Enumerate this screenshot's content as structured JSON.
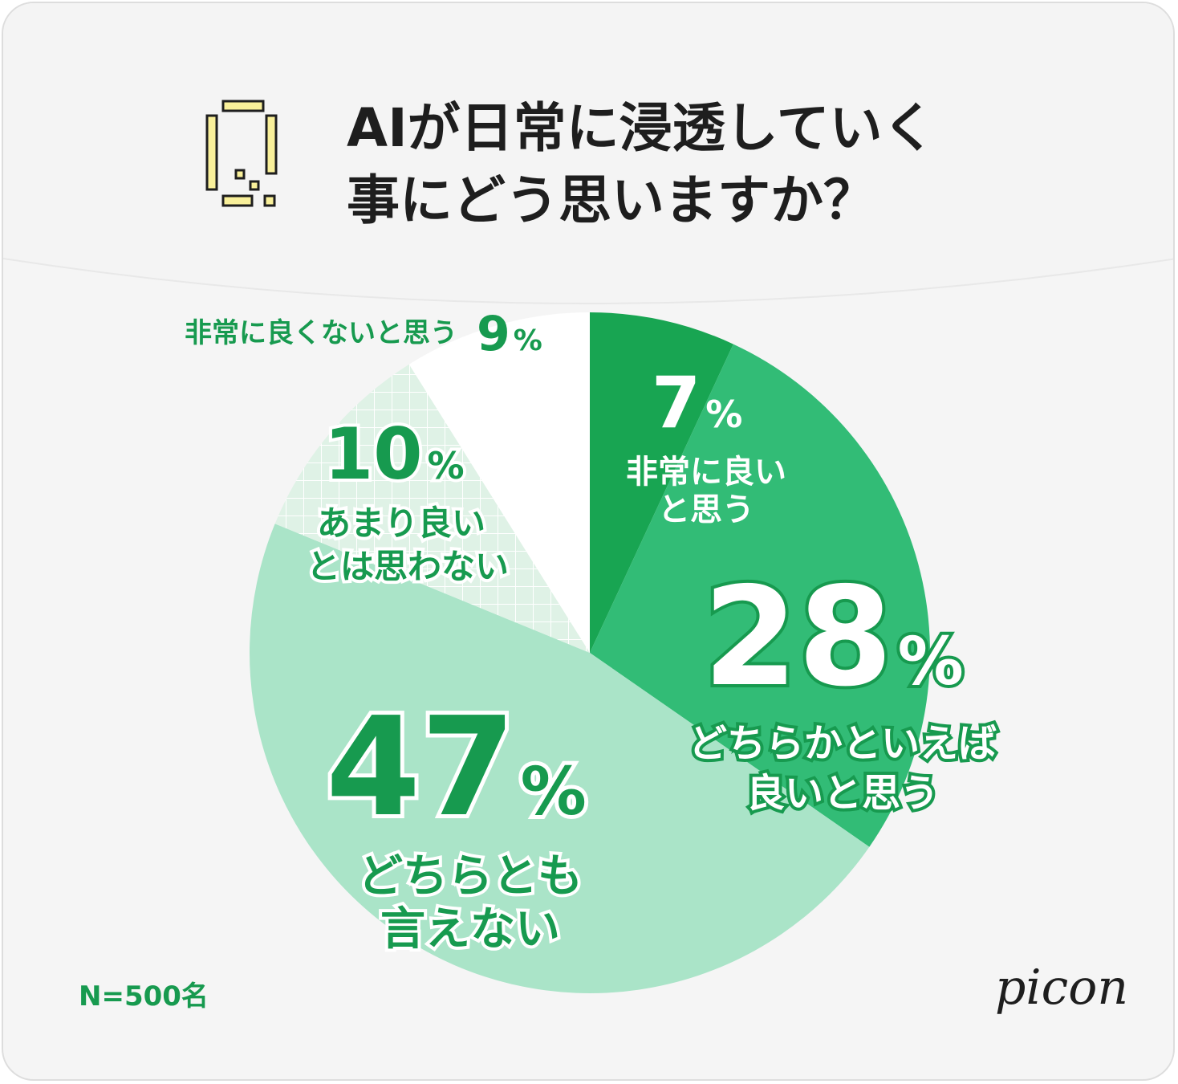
{
  "title": {
    "line1": "AIが日常に浸透していく",
    "line2": "事にどう思いますか？"
  },
  "sample_size": "N=500名",
  "brand": "picon",
  "colors": {
    "background": "#f5f5f5",
    "text": "#1e1e1e",
    "accent_green": "#179a4f",
    "icon_yellow": "#f9f09a"
  },
  "chart_data": {
    "type": "pie",
    "start": "12 o'clock",
    "direction": "clockwise",
    "slices": [
      {
        "label_lines": [
          "非常に良い",
          "と思う"
        ],
        "value": 7,
        "pct_text": "7",
        "color": "#18a552",
        "label_color": "#ffffff"
      },
      {
        "label_lines": [
          "どちらかといえば",
          "良いと思う"
        ],
        "value": 28,
        "pct_text": "28",
        "color": "#32bc76",
        "label_color": "#ffffff"
      },
      {
        "label_lines": [
          "どちらとも",
          "言えない"
        ],
        "value": 47,
        "pct_text": "47",
        "color": "#aae4c8",
        "label_color": "#179a4f"
      },
      {
        "label_lines": [
          "あまり良い",
          "とは思わない"
        ],
        "value": 10,
        "pct_text": "10",
        "color": "#dff2e6",
        "pattern": "grid",
        "label_color": "#179a4f"
      },
      {
        "label_lines": [
          "非常に良くないと思う"
        ],
        "value": 9,
        "pct_text": "9",
        "color": "#ffffff",
        "label_color": "#179a4f"
      }
    ],
    "percent_sign": "%"
  }
}
